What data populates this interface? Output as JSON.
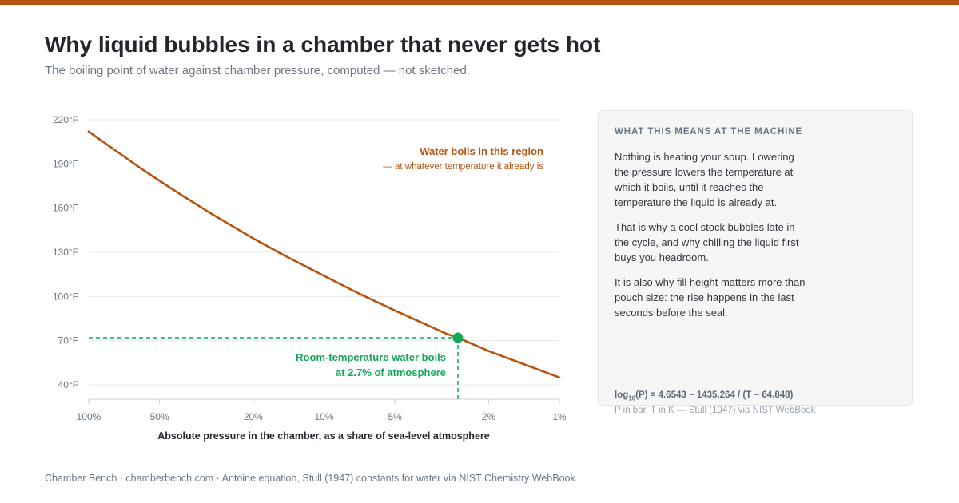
{
  "colors": {
    "accent": "#b5530f",
    "highlight": "#13a85a",
    "grid": "#e6e8eb",
    "muted": "#6b7685"
  },
  "header": {
    "title": "Why liquid bubbles in a chamber that never gets hot",
    "subtitle": "The boiling point of water against chamber pressure, computed — not sketched."
  },
  "chart_data": {
    "type": "line",
    "xlabel": "Absolute pressure in the chamber, as a share of sea-level atmosphere",
    "x_scale": "log",
    "x_reversed": true,
    "xlim": [
      100,
      1
    ],
    "ylim": [
      40,
      220
    ],
    "grid": true,
    "x_ticks": [
      {
        "value": 100,
        "label": "100%"
      },
      {
        "value": 50,
        "label": "50%"
      },
      {
        "value": 20,
        "label": "20%"
      },
      {
        "value": 10,
        "label": "10%"
      },
      {
        "value": 5,
        "label": "5%"
      },
      {
        "value": 2,
        "label": "2%"
      },
      {
        "value": 1,
        "label": "1%"
      }
    ],
    "y_ticks": [
      {
        "value": 40,
        "label": "40°F"
      },
      {
        "value": 70,
        "label": "70°F"
      },
      {
        "value": 100,
        "label": "100°F"
      },
      {
        "value": 130,
        "label": "130°F"
      },
      {
        "value": 160,
        "label": "160°F"
      },
      {
        "value": 190,
        "label": "190°F"
      },
      {
        "value": 220,
        "label": "220°F"
      }
    ],
    "series": [
      {
        "x": [
          100,
          80,
          60,
          50,
          40,
          30,
          20,
          15,
          10,
          7,
          5,
          4,
          3,
          2.7,
          2,
          1.5,
          1
        ],
        "y": [
          212,
          201,
          187,
          178.5,
          168.5,
          156,
          139.5,
          128.5,
          114,
          101.5,
          90.5,
          83.5,
          74.5,
          72,
          63,
          55.5,
          45
        ]
      }
    ],
    "annotations": [
      {
        "id": "region",
        "text": "Water boils in this region",
        "subtext": "— at whatever temperature it already is"
      },
      {
        "id": "point",
        "x": 2.7,
        "y": 72,
        "text": "Room-temperature water boils",
        "subtext": "at 2.7% of atmosphere"
      }
    ]
  },
  "panel": {
    "heading": "WHAT THIS MEANS AT THE MACHINE",
    "paragraphs": [
      "Nothing is heating your soup. Lowering the pressure lowers the temperature at which it boils, until it reaches the temperature the liquid is already at.",
      "That is why a cool stock bubbles late in the cycle, and why chilling the liquid first buys you headroom.",
      "It is also why fill height matters more than pouch size: the rise happens in the last seconds before the seal."
    ],
    "formula_prefix": "log",
    "formula_sub": "10",
    "formula_rest": "(P) = 4.6543 − 1435.264 / (T − 64.848)",
    "formula_note": "P in bar, T in K — Stull (1947) via NIST WebBook"
  },
  "footer": "Chamber Bench · chamberbench.com · Antoine equation, Stull (1947) constants for water via NIST Chemistry WebBook"
}
